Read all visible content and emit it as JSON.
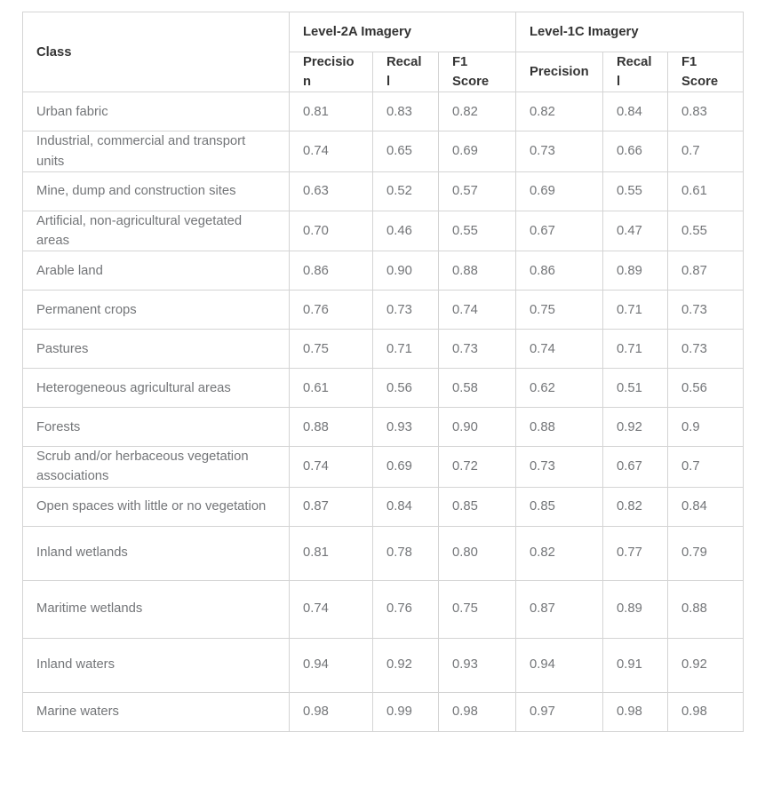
{
  "table": {
    "class_header": "Class",
    "group_headers": [
      "Level-2A Imagery",
      "Level-1C Imagery"
    ],
    "sub_headers": [
      "Precision",
      "Recall",
      "F1 Score"
    ],
    "rows": [
      {
        "class": "Urban fabric",
        "l2a": [
          "0.81",
          "0.83",
          "0.82"
        ],
        "l1c": [
          "0.82",
          "0.84",
          "0.83"
        ]
      },
      {
        "class": "Industrial, commercial and transport units",
        "l2a": [
          "0.74",
          "0.65",
          "0.69"
        ],
        "l1c": [
          "0.73",
          "0.66",
          "0.7"
        ]
      },
      {
        "class": "Mine, dump and construction sites",
        "l2a": [
          "0.63",
          "0.52",
          "0.57"
        ],
        "l1c": [
          "0.69",
          "0.55",
          "0.61"
        ]
      },
      {
        "class": "Artificial, non-agricultural vegetated areas",
        "l2a": [
          "0.70",
          "0.46",
          "0.55"
        ],
        "l1c": [
          "0.67",
          "0.47",
          "0.55"
        ]
      },
      {
        "class": "Arable land",
        "l2a": [
          "0.86",
          "0.90",
          "0.88"
        ],
        "l1c": [
          "0.86",
          "0.89",
          "0.87"
        ]
      },
      {
        "class": "Permanent crops",
        "l2a": [
          "0.76",
          "0.73",
          "0.74"
        ],
        "l1c": [
          "0.75",
          "0.71",
          "0.73"
        ]
      },
      {
        "class": "Pastures",
        "l2a": [
          "0.75",
          "0.71",
          "0.73"
        ],
        "l1c": [
          "0.74",
          "0.71",
          "0.73"
        ]
      },
      {
        "class": "Heterogeneous agricultural areas",
        "l2a": [
          "0.61",
          "0.56",
          "0.58"
        ],
        "l1c": [
          "0.62",
          "0.51",
          "0.56"
        ]
      },
      {
        "class": "Forests",
        "l2a": [
          "0.88",
          "0.93",
          "0.90"
        ],
        "l1c": [
          "0.88",
          "0.92",
          "0.9"
        ]
      },
      {
        "class": "Scrub and/or herbaceous vegetation associations",
        "l2a": [
          "0.74",
          "0.69",
          "0.72"
        ],
        "l1c": [
          "0.73",
          "0.67",
          "0.7"
        ]
      },
      {
        "class": "Open spaces with little or no vegetation",
        "l2a": [
          "0.87",
          "0.84",
          "0.85"
        ],
        "l1c": [
          "0.85",
          "0.82",
          "0.84"
        ]
      },
      {
        "class": "Inland wetlands",
        "l2a": [
          "0.81",
          "0.78",
          "0.80"
        ],
        "l1c": [
          "0.82",
          "0.77",
          "0.79"
        ]
      },
      {
        "class": "Maritime wetlands",
        "l2a": [
          "0.74",
          "0.76",
          "0.75"
        ],
        "l1c": [
          "0.87",
          "0.89",
          "0.88"
        ]
      },
      {
        "class": "Inland waters",
        "l2a": [
          "0.94",
          "0.92",
          "0.93"
        ],
        "l1c": [
          "0.94",
          "0.91",
          "0.92"
        ]
      },
      {
        "class": "Marine waters",
        "l2a": [
          "0.98",
          "0.99",
          "0.98"
        ],
        "l1c": [
          "0.97",
          "0.98",
          "0.98"
        ]
      }
    ]
  },
  "colors": {
    "border": "#d4d4d4",
    "header_text": "#343434",
    "body_text": "#737578",
    "background": "#ffffff"
  },
  "chart_data": {
    "type": "table",
    "title": "",
    "column_groups": [
      "Level-2A Imagery",
      "Level-1C Imagery"
    ],
    "columns": [
      "Class",
      "L2A Precision",
      "L2A Recall",
      "L2A F1 Score",
      "L1C Precision",
      "L1C Recall",
      "L1C F1 Score"
    ],
    "rows": [
      [
        "Urban fabric",
        0.81,
        0.83,
        0.82,
        0.82,
        0.84,
        0.83
      ],
      [
        "Industrial, commercial and transport units",
        0.74,
        0.65,
        0.69,
        0.73,
        0.66,
        0.7
      ],
      [
        "Mine, dump and construction sites",
        0.63,
        0.52,
        0.57,
        0.69,
        0.55,
        0.61
      ],
      [
        "Artificial, non-agricultural vegetated areas",
        0.7,
        0.46,
        0.55,
        0.67,
        0.47,
        0.55
      ],
      [
        "Arable land",
        0.86,
        0.9,
        0.88,
        0.86,
        0.89,
        0.87
      ],
      [
        "Permanent crops",
        0.76,
        0.73,
        0.74,
        0.75,
        0.71,
        0.73
      ],
      [
        "Pastures",
        0.75,
        0.71,
        0.73,
        0.74,
        0.71,
        0.73
      ],
      [
        "Heterogeneous agricultural areas",
        0.61,
        0.56,
        0.58,
        0.62,
        0.51,
        0.56
      ],
      [
        "Forests",
        0.88,
        0.93,
        0.9,
        0.88,
        0.92,
        0.9
      ],
      [
        "Scrub and/or herbaceous vegetation associations",
        0.74,
        0.69,
        0.72,
        0.73,
        0.67,
        0.7
      ],
      [
        "Open spaces with little or no vegetation",
        0.87,
        0.84,
        0.85,
        0.85,
        0.82,
        0.84
      ],
      [
        "Inland wetlands",
        0.81,
        0.78,
        0.8,
        0.82,
        0.77,
        0.79
      ],
      [
        "Maritime wetlands",
        0.74,
        0.76,
        0.75,
        0.87,
        0.89,
        0.88
      ],
      [
        "Inland waters",
        0.94,
        0.92,
        0.93,
        0.94,
        0.91,
        0.92
      ],
      [
        "Marine waters",
        0.98,
        0.99,
        0.98,
        0.97,
        0.98,
        0.98
      ]
    ]
  }
}
